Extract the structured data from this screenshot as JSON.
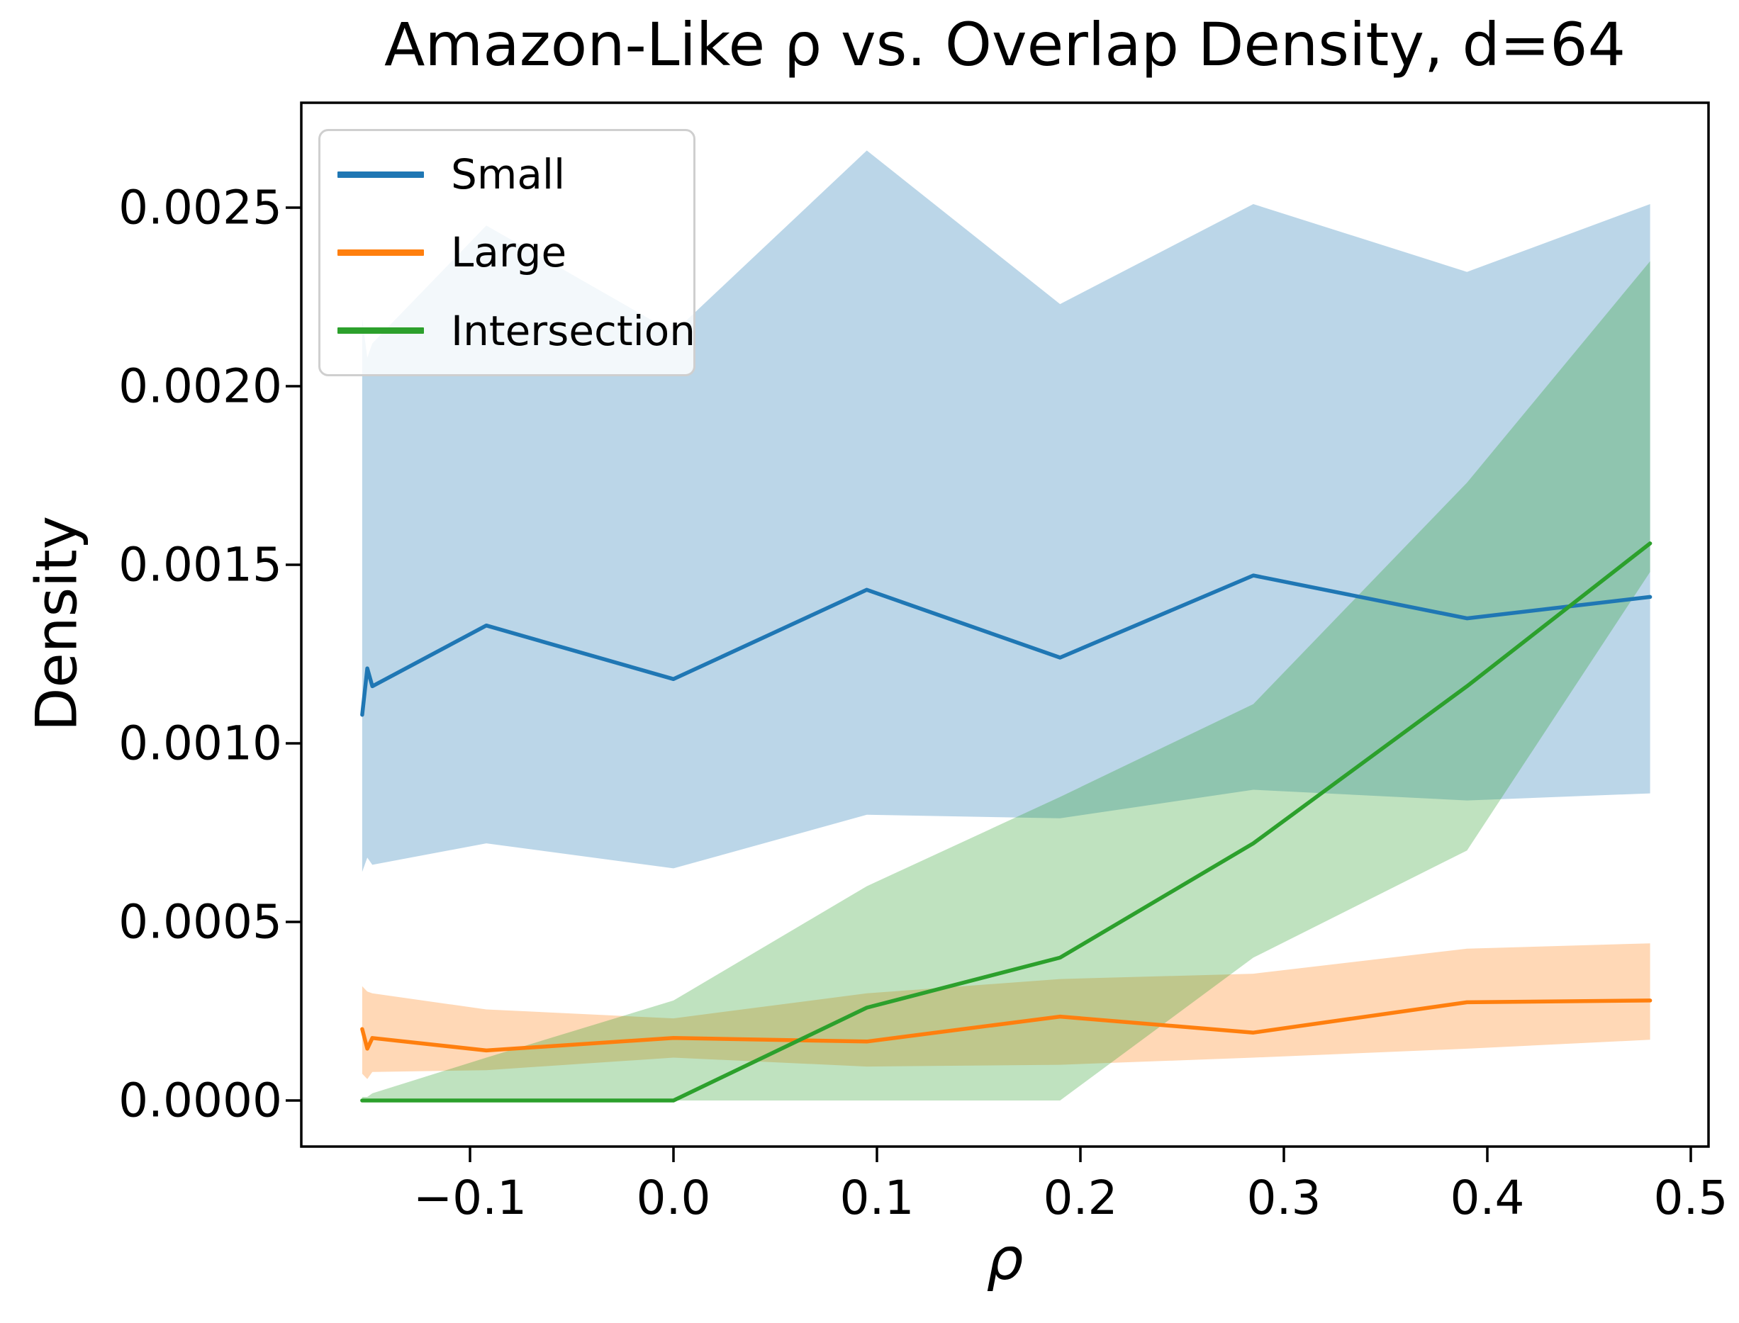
{
  "title": "Amazon-Like ρ vs. Overlap Density, d=64",
  "axes": {
    "xlabel": "ρ",
    "ylabel": "Density",
    "xtick_labels": [
      "−0.1",
      "0.0",
      "0.1",
      "0.2",
      "0.3",
      "0.4",
      "0.5"
    ],
    "xtick_values": [
      -0.1,
      0.0,
      0.1,
      0.2,
      0.3,
      0.4,
      0.5
    ],
    "ytick_labels": [
      "0.0000",
      "0.0005",
      "0.0010",
      "0.0015",
      "0.0020",
      "0.0025"
    ],
    "ytick_values": [
      0.0,
      0.0005,
      0.001,
      0.0015,
      0.002,
      0.0025
    ]
  },
  "legend": {
    "items": [
      {
        "label": "Small",
        "color": "#1f77b4"
      },
      {
        "label": "Large",
        "color": "#ff7f0e"
      },
      {
        "label": "Intersection",
        "color": "#2ca02c"
      }
    ]
  },
  "chart_data": {
    "type": "line",
    "title": "Amazon-Like ρ vs. Overlap Density, d=64",
    "xlabel": "ρ",
    "ylabel": "Density",
    "xlim": [
      -0.183,
      0.509
    ],
    "ylim": [
      -0.00013,
      0.0028
    ],
    "grid": false,
    "legend_position": "upper left",
    "band_alpha": 0.3,
    "x": [
      -0.153,
      -0.1505,
      -0.148,
      -0.092,
      0.0,
      0.095,
      0.19,
      0.285,
      0.39,
      0.48
    ],
    "series": [
      {
        "name": "Small",
        "color": "#1f77b4",
        "values": [
          0.00108,
          0.00121,
          0.00116,
          0.00133,
          0.00118,
          0.00143,
          0.00124,
          0.00147,
          0.00135,
          0.00141
        ],
        "lower": [
          0.00064,
          0.00068,
          0.00066,
          0.00072,
          0.00065,
          0.0008,
          0.00079,
          0.00087,
          0.00084,
          0.00086
        ],
        "upper": [
          0.00219,
          0.00208,
          0.00212,
          0.00245,
          0.00215,
          0.00266,
          0.00223,
          0.00251,
          0.00232,
          0.00251
        ]
      },
      {
        "name": "Large",
        "color": "#ff7f0e",
        "values": [
          0.0002,
          0.000145,
          0.000175,
          0.00014,
          0.000175,
          0.000165,
          0.000235,
          0.00019,
          0.000275,
          0.00028
        ],
        "lower": [
          7.5e-05,
          6e-05,
          8e-05,
          8.5e-05,
          0.00012,
          9.5e-05,
          0.0001,
          0.00012,
          0.000145,
          0.00017
        ],
        "upper": [
          0.00032,
          0.000305,
          0.0003,
          0.000255,
          0.00023,
          0.0003,
          0.00034,
          0.000355,
          0.000425,
          0.00044
        ]
      },
      {
        "name": "Intersection",
        "color": "#2ca02c",
        "values": [
          0.0,
          0.0,
          0.0,
          0.0,
          0.0,
          0.00026,
          0.0004,
          0.00072,
          0.00116,
          0.00156
        ],
        "lower": [
          0.0,
          0.0,
          0.0,
          0.0,
          0.0,
          0.0,
          0.0,
          0.0004,
          0.0007,
          0.00148
        ],
        "upper": [
          1e-05,
          1e-05,
          2e-05,
          0.00012,
          0.00028,
          0.0006,
          0.00085,
          0.00111,
          0.00173,
          0.00235
        ]
      }
    ]
  }
}
